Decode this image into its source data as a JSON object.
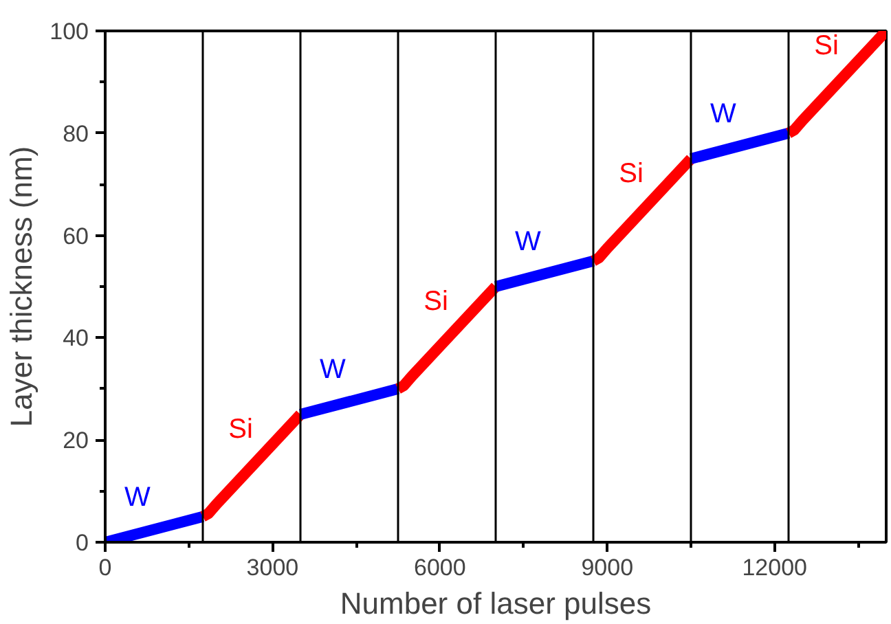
{
  "chart_data": {
    "type": "line",
    "xlabel": "Number of laser pulses",
    "ylabel": "Layer thickness (nm)",
    "xlim": [
      0,
      14000
    ],
    "ylim": [
      0,
      100
    ],
    "xticks": [
      0,
      {
        "value": 1500,
        "label": null
      },
      3000,
      {
        "value": 4500,
        "label": null
      },
      6000,
      {
        "value": 7500,
        "label": null
      },
      9000,
      {
        "value": 10500,
        "label": null
      },
      12000,
      {
        "value": 13500,
        "label": null
      }
    ],
    "yticks": [
      0,
      {
        "value": 10,
        "label": null
      },
      20,
      {
        "value": 30,
        "label": null
      },
      40,
      {
        "value": 50,
        "label": null
      },
      60,
      {
        "value": 70,
        "label": null
      },
      80,
      {
        "value": 90,
        "label": null
      },
      100
    ],
    "grid": false,
    "legend": false,
    "marker": "none",
    "line_style": "solid",
    "series": [
      {
        "name": "W",
        "color": "#0000ff",
        "x": [
          0,
          1750
        ],
        "values": [
          0,
          5
        ]
      },
      {
        "name": "Si",
        "color": "#ff0000",
        "x": [
          1750,
          1850,
          2000,
          3500
        ],
        "values": [
          5,
          5.6,
          7.5,
          25
        ]
      },
      {
        "name": "W",
        "color": "#0000ff",
        "x": [
          3500,
          5250
        ],
        "values": [
          25,
          30
        ]
      },
      {
        "name": "Si",
        "color": "#ff0000",
        "x": [
          5250,
          5350,
          5500,
          7000
        ],
        "values": [
          30,
          30.6,
          32.5,
          50
        ]
      },
      {
        "name": "W",
        "color": "#0000ff",
        "x": [
          7000,
          8750
        ],
        "values": [
          50,
          55
        ]
      },
      {
        "name": "Si",
        "color": "#ff0000",
        "x": [
          8750,
          8850,
          9000,
          10500
        ],
        "values": [
          55,
          55.6,
          57.5,
          75
        ]
      },
      {
        "name": "W",
        "color": "#0000ff",
        "x": [
          10500,
          12250
        ],
        "values": [
          75,
          80
        ]
      },
      {
        "name": "Si",
        "color": "#ff0000",
        "x": [
          12250,
          12350,
          12500,
          14000
        ],
        "values": [
          80,
          80.6,
          82.5,
          100
        ]
      }
    ],
    "ref_lines": [
      {
        "axis": "x",
        "value": 1750,
        "label": null,
        "color": "#000000"
      },
      {
        "axis": "x",
        "value": 3500,
        "label": null,
        "color": "#000000"
      },
      {
        "axis": "x",
        "value": 5250,
        "label": null,
        "color": "#000000"
      },
      {
        "axis": "x",
        "value": 7000,
        "label": null,
        "color": "#000000"
      },
      {
        "axis": "x",
        "value": 8750,
        "label": null,
        "color": "#000000"
      },
      {
        "axis": "x",
        "value": 10500,
        "label": null,
        "color": "#000000"
      },
      {
        "axis": "x",
        "value": 12250,
        "label": null,
        "color": "#000000"
      }
    ]
  }
}
